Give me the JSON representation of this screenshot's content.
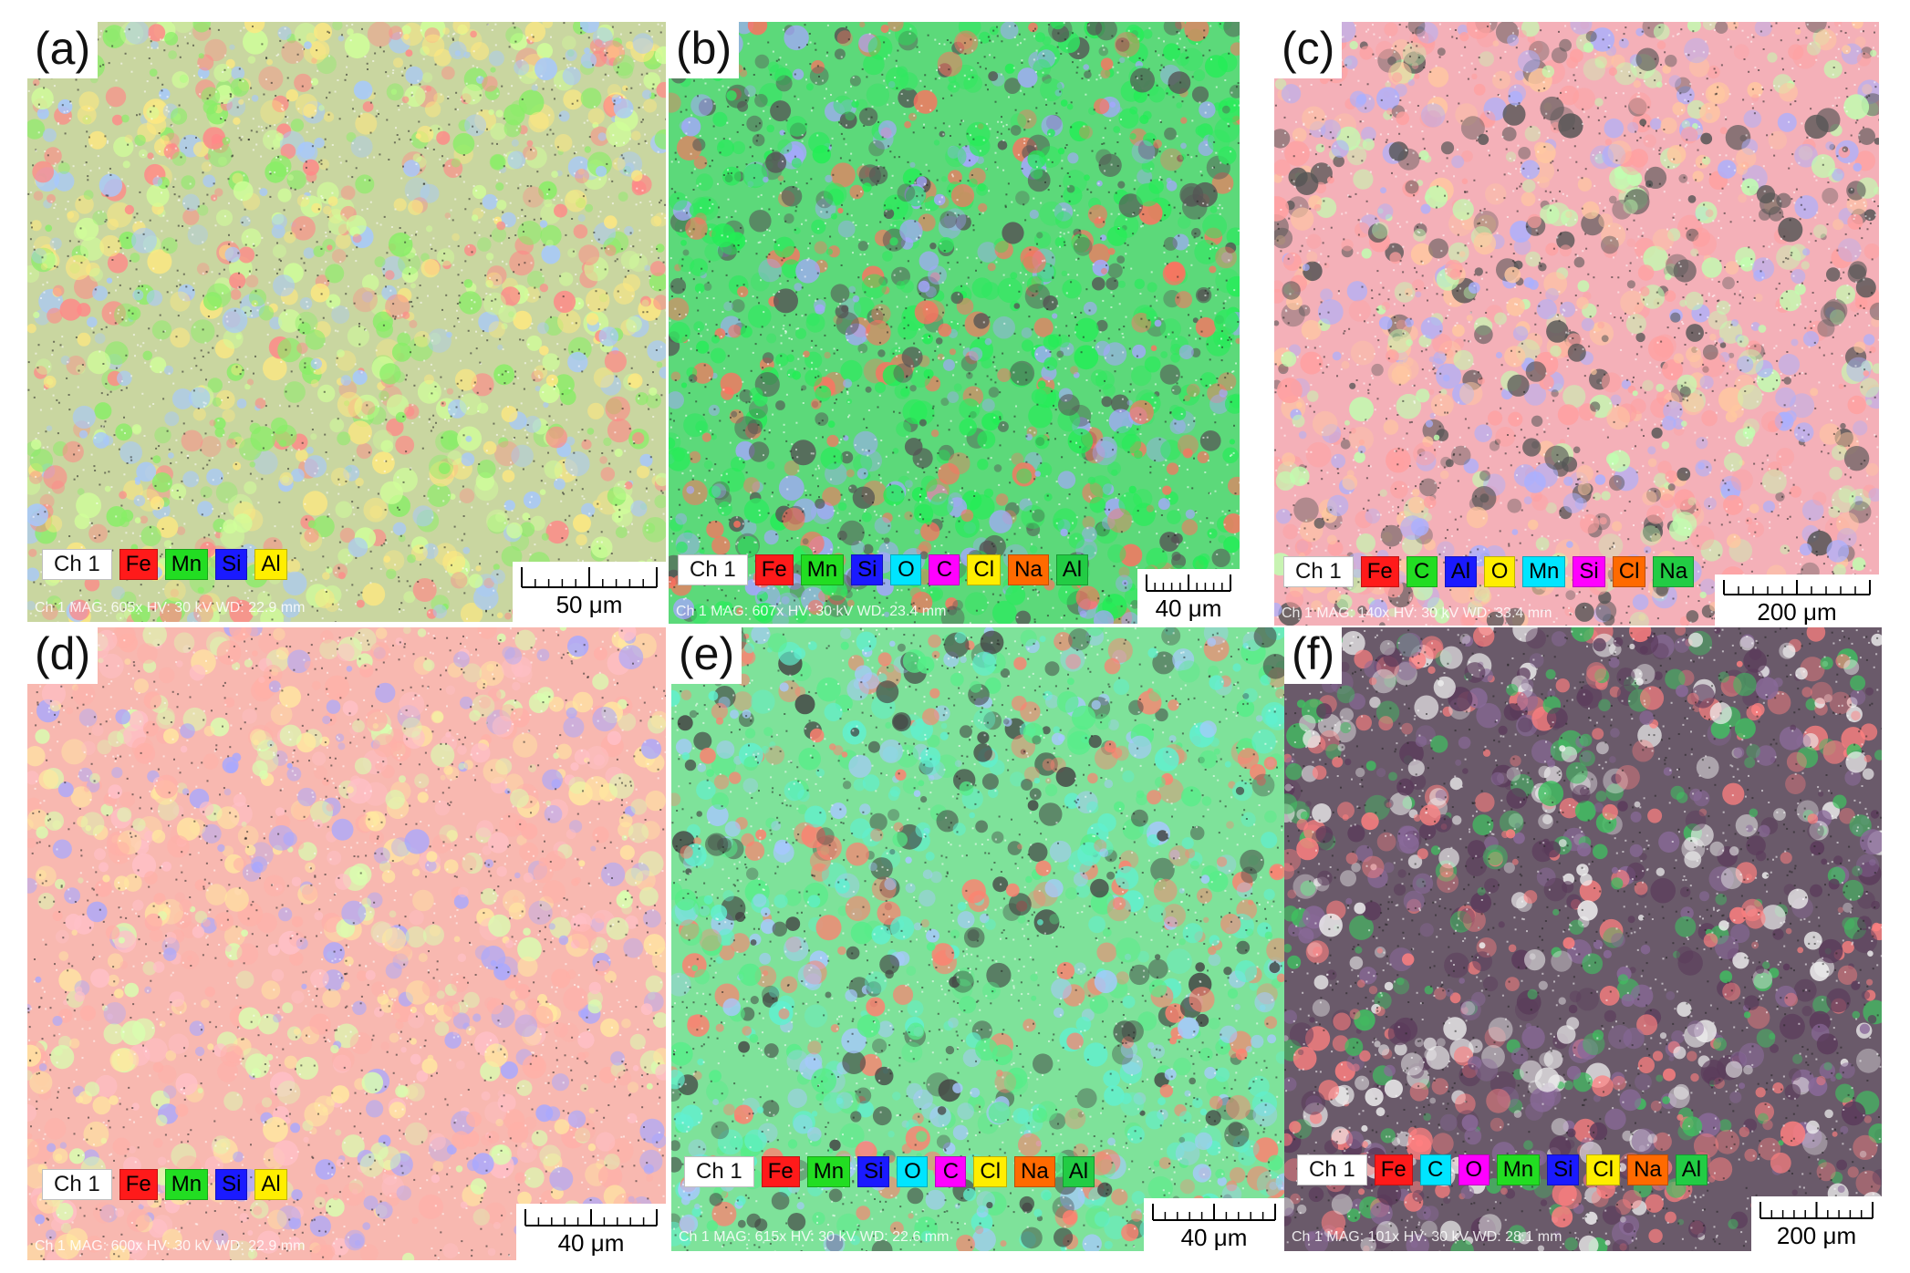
{
  "panels": [
    {
      "label": "(a)",
      "legend": [
        {
          "text": "Ch 1",
          "color": "#ffffff"
        },
        {
          "text": "Fe",
          "color": "#ff1a1a"
        },
        {
          "text": "Mn",
          "color": "#22dd22"
        },
        {
          "text": "Si",
          "color": "#1a1aff"
        },
        {
          "text": "Al",
          "color": "#ffee00"
        }
      ],
      "meta": "Ch 1   MAG: 605x   HV: 30 kV   WD: 22.9 mm",
      "scale": "50 μm",
      "palette": [
        "#ff8888",
        "#88ee66",
        "#a6c8ff",
        "#ffe880",
        "#d0ff9a"
      ],
      "base": "#c9d6a0"
    },
    {
      "label": "(b)",
      "legend": [
        {
          "text": "Ch 1",
          "color": "#ffffff"
        },
        {
          "text": "Fe",
          "color": "#ff1a1a"
        },
        {
          "text": "Mn",
          "color": "#22dd22"
        },
        {
          "text": "Si",
          "color": "#1a1aff"
        },
        {
          "text": "O",
          "color": "#00e5ff"
        },
        {
          "text": "C",
          "color": "#ff00ff"
        },
        {
          "text": "Cl",
          "color": "#ffee00"
        },
        {
          "text": "Na",
          "color": "#ff6a00"
        },
        {
          "text": "Al",
          "color": "#22cc44"
        }
      ],
      "meta": "Ch 1   MAG: 607x   HV: 30 kV   WD: 23.4 mm",
      "scale": "40 μm",
      "palette": [
        "#ff7060",
        "#30e860",
        "#22ee55",
        "#a6a6ff",
        "#555555"
      ],
      "base": "#5cd97a"
    },
    {
      "label": "(c)",
      "legend": [
        {
          "text": "Ch 1",
          "color": "#ffffff"
        },
        {
          "text": "Fe",
          "color": "#ff1a1a"
        },
        {
          "text": "C",
          "color": "#22dd22"
        },
        {
          "text": "Al",
          "color": "#1a1aff"
        },
        {
          "text": "O",
          "color": "#ffee00"
        },
        {
          "text": "Mn",
          "color": "#00e5ff"
        },
        {
          "text": "Si",
          "color": "#ff00ff"
        },
        {
          "text": "Cl",
          "color": "#ff6a00"
        },
        {
          "text": "Na",
          "color": "#22cc44"
        }
      ],
      "meta": "Ch 1   MAG: 140x   HV: 30 kV   WD: 33.4 mm",
      "scale": "200 μm",
      "palette": [
        "#ffa0a0",
        "#aab0ff",
        "#c0ffb0",
        "#ffc8a0",
        "#555555"
      ],
      "base": "#f4b0b8"
    },
    {
      "label": "(d)",
      "legend": [
        {
          "text": "Ch 1",
          "color": "#ffffff"
        },
        {
          "text": "Fe",
          "color": "#ff1a1a"
        },
        {
          "text": "Mn",
          "color": "#22dd22"
        },
        {
          "text": "Si",
          "color": "#1a1aff"
        },
        {
          "text": "Al",
          "color": "#ffee00"
        }
      ],
      "meta": "Ch 1   MAG: 600x   HV: 30 kV   WD: 22.9 mm",
      "scale": "40 μm",
      "palette": [
        "#ffb0a8",
        "#a8a8ff",
        "#ffe8a0",
        "#d8ffb0",
        "#ffc0c8"
      ],
      "base": "#f8b8b0"
    },
    {
      "label": "(e)",
      "legend": [
        {
          "text": "Ch 1",
          "color": "#ffffff"
        },
        {
          "text": "Fe",
          "color": "#ff1a1a"
        },
        {
          "text": "Mn",
          "color": "#22dd22"
        },
        {
          "text": "Si",
          "color": "#1a1aff"
        },
        {
          "text": "O",
          "color": "#00e5ff"
        },
        {
          "text": "C",
          "color": "#ff00ff"
        },
        {
          "text": "Cl",
          "color": "#ffee00"
        },
        {
          "text": "Na",
          "color": "#ff6a00"
        },
        {
          "text": "Al",
          "color": "#22cc44"
        }
      ],
      "meta": "Ch 1   MAG: 615x   HV: 30 kV   WD: 22.6 mm",
      "scale": "40 μm",
      "palette": [
        "#55ee88",
        "#ff8070",
        "#a8c8ff",
        "#60f0d0",
        "#444444"
      ],
      "base": "#7ee29a"
    },
    {
      "label": "(f)",
      "legend": [
        {
          "text": "Ch 1",
          "color": "#ffffff"
        },
        {
          "text": "Fe",
          "color": "#ff1a1a"
        },
        {
          "text": "C",
          "color": "#00e5ff"
        },
        {
          "text": "O",
          "color": "#ff00ff"
        },
        {
          "text": "Mn",
          "color": "#22dd22"
        },
        {
          "text": "Si",
          "color": "#1a1aff"
        },
        {
          "text": "Cl",
          "color": "#ffee00"
        },
        {
          "text": "Na",
          "color": "#ff6a00"
        },
        {
          "text": "Al",
          "color": "#22cc44"
        }
      ],
      "meta": "Ch 1   MAG: 101x   HV: 30 kV   WD: 28.1 mm",
      "scale": "200 μm",
      "palette": [
        "#5a3a5a",
        "#ff8080",
        "#40c060",
        "#8a6a9a",
        "#f0f0f0"
      ],
      "base": "#6a5a6a"
    }
  ]
}
